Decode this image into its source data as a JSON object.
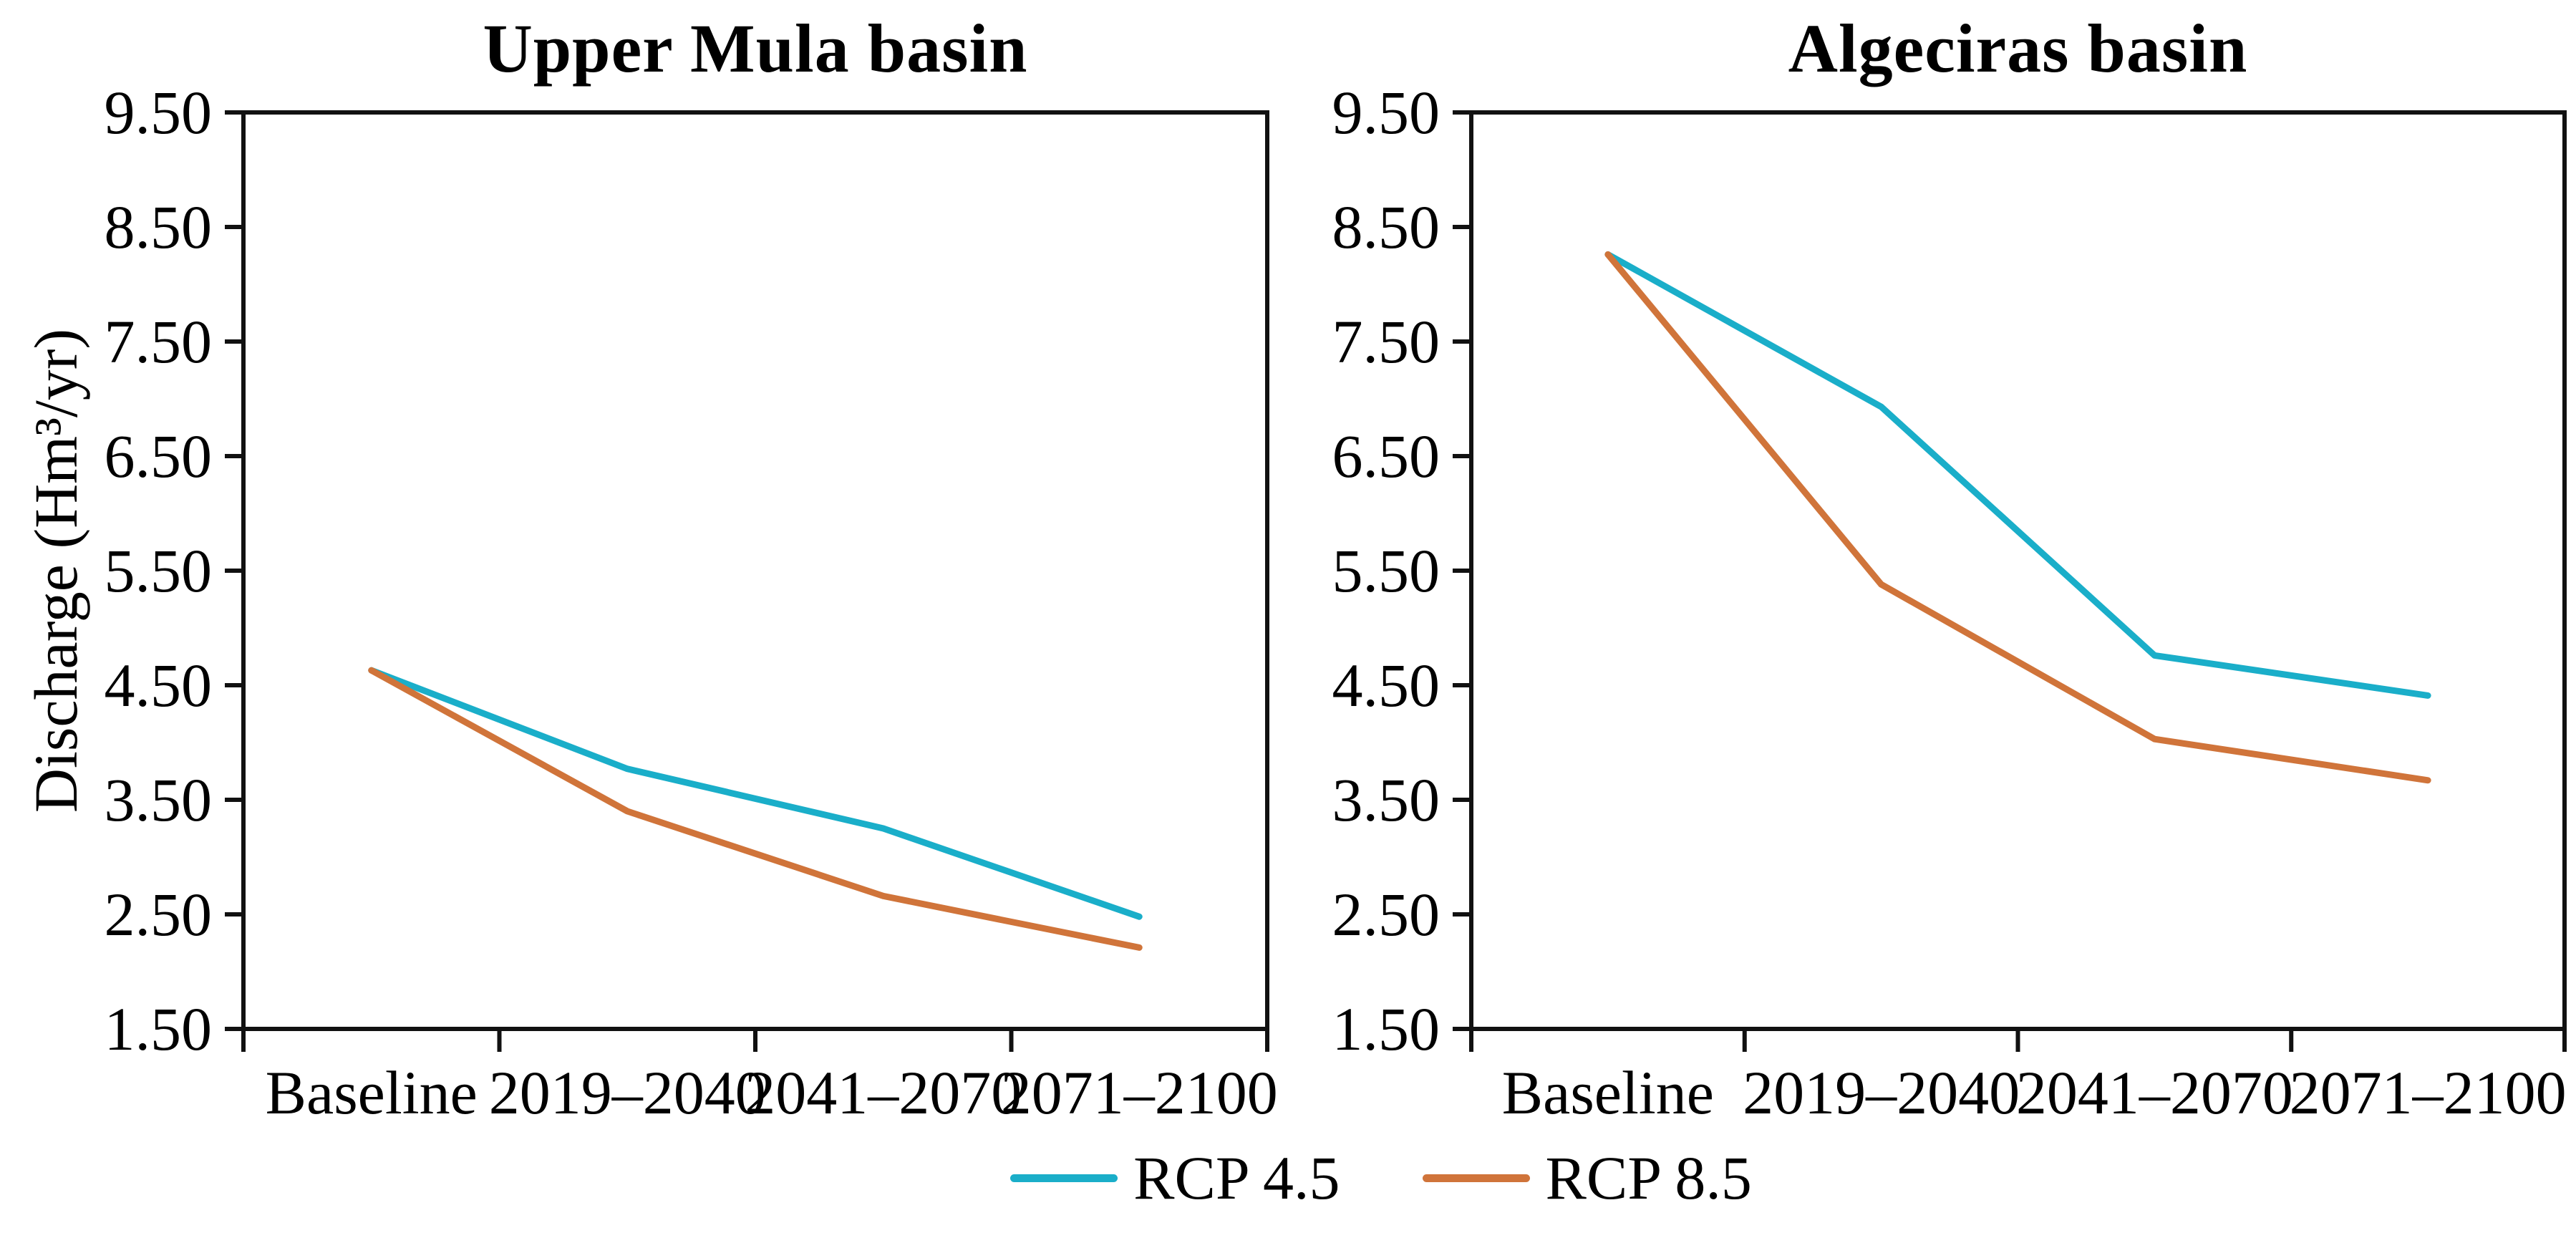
{
  "chart_data": [
    {
      "type": "line",
      "title": "Upper Mula basin",
      "xlabel": "",
      "ylabel": "Discharge (Hm³/yr)",
      "categories": [
        "Baseline",
        "2019–2040",
        "2041–2070",
        "2071–2100"
      ],
      "series": [
        {
          "name": "RCP 4.5",
          "color": "#1aaec9",
          "values": [
            4.63,
            3.77,
            3.25,
            2.48
          ]
        },
        {
          "name": "RCP 8.5",
          "color": "#d0743a",
          "values": [
            4.63,
            3.4,
            2.66,
            2.21
          ]
        }
      ],
      "ylim": [
        1.5,
        9.5
      ],
      "ytick_step": 1.0,
      "ytick_labels": [
        "1.50",
        "2.50",
        "3.50",
        "4.50",
        "5.50",
        "6.50",
        "7.50",
        "8.50",
        "9.50"
      ],
      "grid": false,
      "legend_position": "bottom-center"
    },
    {
      "type": "line",
      "title": "Algeciras basin",
      "xlabel": "",
      "ylabel": "Discharge (Hm³/yr)",
      "categories": [
        "Baseline",
        "2019–2040",
        "2041–2070",
        "2071–2100"
      ],
      "series": [
        {
          "name": "RCP 4.5",
          "color": "#1aaec9",
          "values": [
            8.26,
            6.93,
            4.76,
            4.41
          ]
        },
        {
          "name": "RCP 8.5",
          "color": "#d0743a",
          "values": [
            8.26,
            5.38,
            4.03,
            3.67
          ]
        }
      ],
      "ylim": [
        1.5,
        9.5
      ],
      "ytick_step": 1.0,
      "ytick_labels": [
        "1.50",
        "2.50",
        "3.50",
        "4.50",
        "5.50",
        "6.50",
        "7.50",
        "8.50",
        "9.50"
      ],
      "grid": false,
      "legend_position": "bottom-center"
    }
  ]
}
